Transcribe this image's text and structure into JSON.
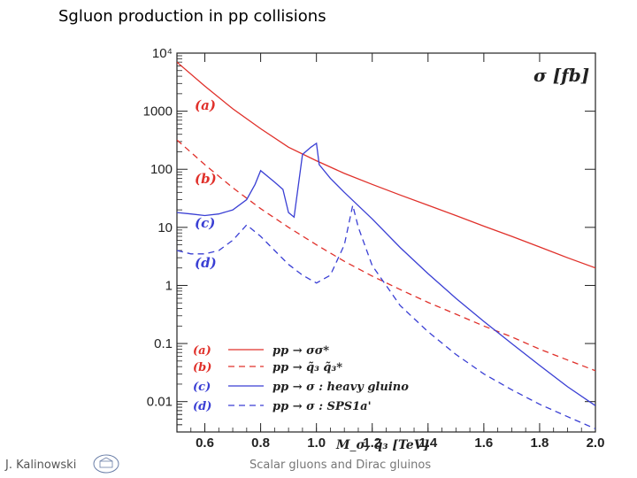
{
  "slide": {
    "title": "Sgluon production in pp collisions",
    "author": "J. Kalinowski",
    "footer": "Scalar gluons and Dirac gluinos",
    "logo": "university-seal-logo"
  },
  "chart_data": {
    "type": "line",
    "ylabel": "σ [fb]",
    "xlabel": "M_σ, q̃₃ [TeV]",
    "xlim": [
      0.5,
      2.0
    ],
    "ylim": [
      0.003,
      10000
    ],
    "yscale": "log",
    "xticks": [
      "0.6",
      "0.8",
      "1.0",
      "1.2",
      "1.4",
      "1.6",
      "1.8",
      "2.0"
    ],
    "yticks": [
      "10⁴",
      "1000",
      "100",
      "10",
      "1",
      "0.1",
      "0.01"
    ],
    "curve_tags": [
      "(a)",
      "(b)",
      "(c)",
      "(d)"
    ],
    "legend_position": "bottom-left",
    "colors": {
      "red": "#e0302a",
      "blue": "#3a3fd4"
    },
    "series": [
      {
        "name": "(a) pp → σσ*",
        "color": "#e0302a",
        "dash": "solid",
        "x": [
          0.5,
          0.6,
          0.7,
          0.8,
          0.9,
          1.0,
          1.1,
          1.2,
          1.3,
          1.4,
          1.5,
          1.6,
          1.7,
          1.8,
          1.9,
          2.0
        ],
        "y": [
          7000,
          2700,
          1100,
          500,
          240,
          140,
          85,
          55,
          36,
          24,
          16,
          10.5,
          7,
          4.6,
          3,
          2
        ]
      },
      {
        "name": "(b) pp → q̃₃ q̃₃*",
        "color": "#e0302a",
        "dash": "dashed",
        "x": [
          0.5,
          0.6,
          0.7,
          0.8,
          0.9,
          1.0,
          1.1,
          1.2,
          1.3,
          1.4,
          1.5,
          1.6,
          1.7,
          1.8,
          1.9,
          2.0
        ],
        "y": [
          320,
          120,
          48,
          21,
          10,
          5,
          2.6,
          1.45,
          0.85,
          0.51,
          0.32,
          0.2,
          0.13,
          0.08,
          0.052,
          0.034
        ]
      },
      {
        "name": "(c) pp → σ : heavy gluino",
        "color": "#3a3fd4",
        "dash": "solid",
        "x": [
          0.5,
          0.55,
          0.6,
          0.65,
          0.7,
          0.75,
          0.78,
          0.8,
          0.85,
          0.88,
          0.9,
          0.92,
          0.95,
          0.98,
          1.0,
          1.01,
          1.05,
          1.1,
          1.2,
          1.3,
          1.4,
          1.5,
          1.6,
          1.7,
          1.8,
          1.9,
          2.0
        ],
        "y": [
          18,
          17,
          16,
          17,
          20,
          30,
          55,
          95,
          60,
          45,
          18,
          15,
          180,
          240,
          280,
          120,
          70,
          40,
          14,
          4.5,
          1.6,
          0.6,
          0.24,
          0.1,
          0.042,
          0.018,
          0.0085
        ]
      },
      {
        "name": "(d) pp → σ : SPS1a'",
        "color": "#3a3fd4",
        "dash": "dashed",
        "x": [
          0.5,
          0.55,
          0.6,
          0.65,
          0.7,
          0.75,
          0.8,
          0.85,
          0.9,
          0.95,
          1.0,
          1.05,
          1.1,
          1.13,
          1.15,
          1.2,
          1.3,
          1.4,
          1.5,
          1.6,
          1.7,
          1.8,
          1.9,
          2.0
        ],
        "y": [
          4,
          3.5,
          3.5,
          4,
          6,
          11,
          7,
          4,
          2.3,
          1.5,
          1.1,
          1.5,
          5,
          24,
          10,
          2.2,
          0.45,
          0.16,
          0.065,
          0.03,
          0.016,
          0.009,
          0.0055,
          0.0034
        ]
      }
    ]
  }
}
